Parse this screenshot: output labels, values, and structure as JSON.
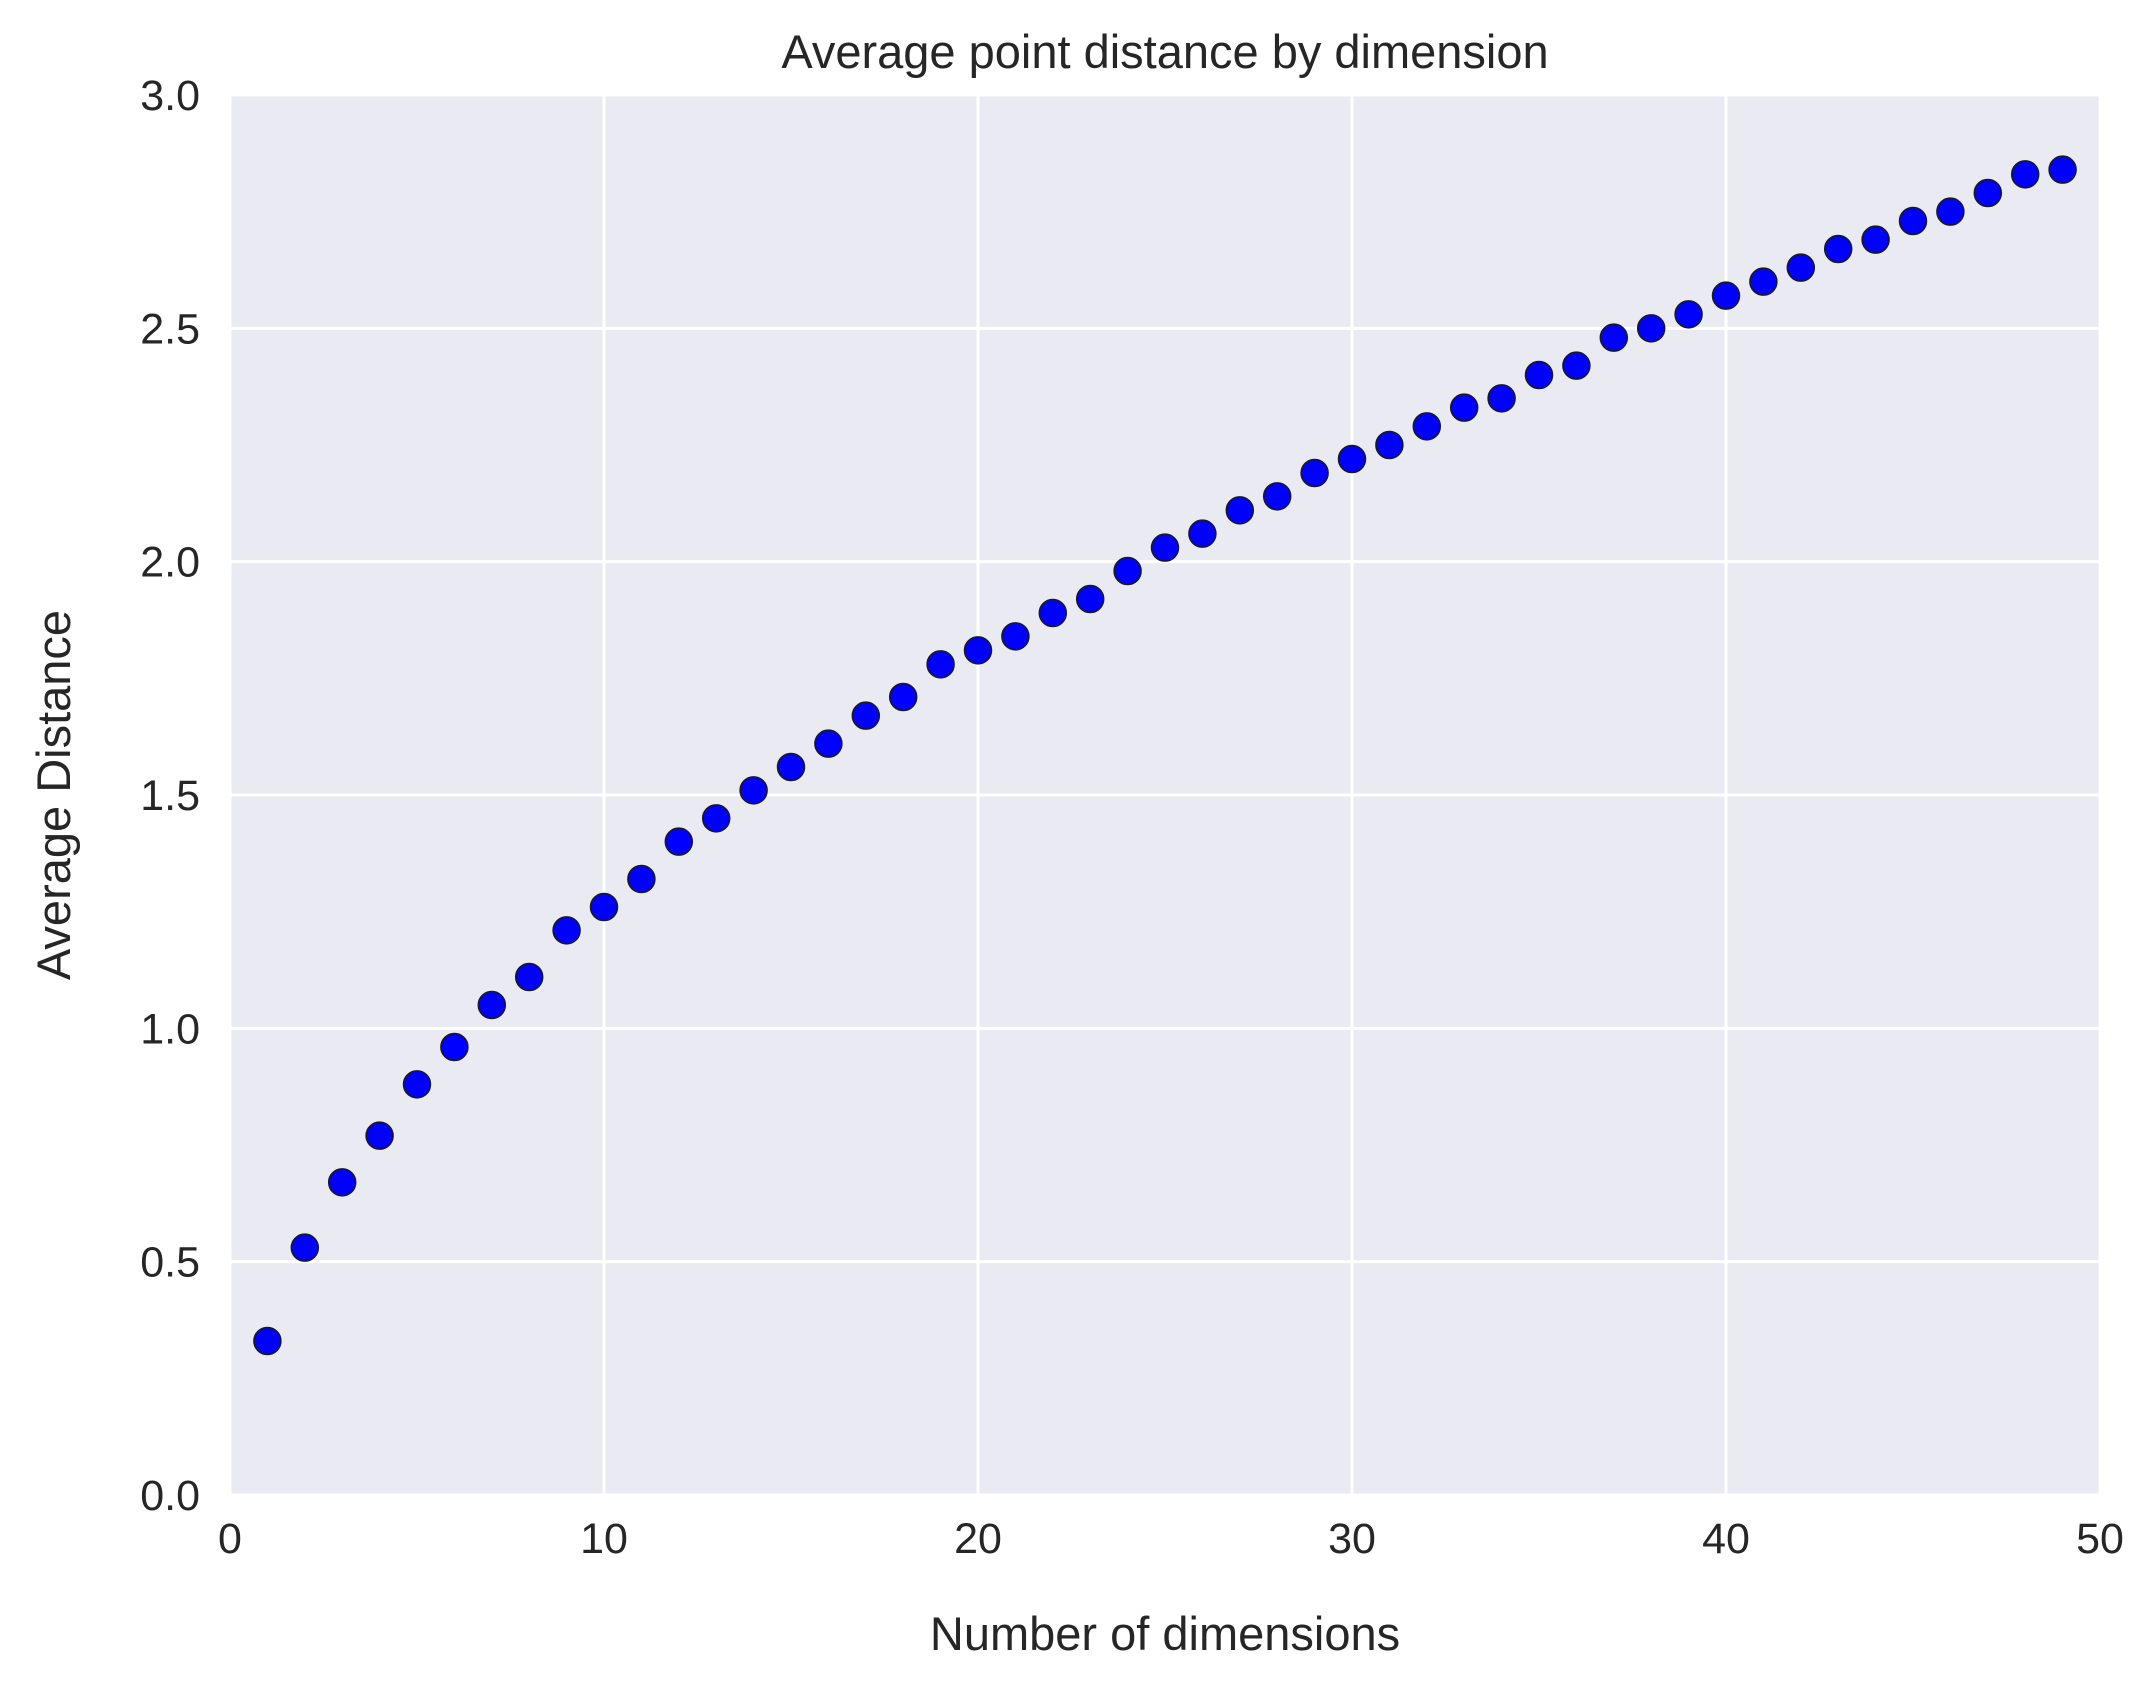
{
  "chart_data": {
    "type": "scatter",
    "title": "Average point distance by dimension",
    "xlabel": "Number of dimensions",
    "ylabel": "Average Distance",
    "xlim": [
      0,
      50
    ],
    "ylim": [
      0,
      3
    ],
    "xticks": [
      0,
      10,
      20,
      30,
      40,
      50
    ],
    "yticks": [
      0.0,
      0.5,
      1.0,
      1.5,
      2.0,
      2.5,
      3.0
    ],
    "xtick_labels": [
      "0",
      "10",
      "20",
      "30",
      "40",
      "50"
    ],
    "ytick_labels": [
      "0.0",
      "0.5",
      "1.0",
      "1.5",
      "2.0",
      "2.5",
      "3.0"
    ],
    "grid": true,
    "colors": {
      "background": "#EAEAF2",
      "grid": "#FFFFFF",
      "marker": "#0000FF",
      "marker_edge": "#1A1A1A"
    },
    "series": [
      {
        "x": [
          1,
          2,
          3,
          4,
          5,
          6,
          7,
          8,
          9,
          10,
          11,
          12,
          13,
          14,
          15,
          16,
          17,
          18,
          19,
          20,
          21,
          22,
          23,
          24,
          25,
          26,
          27,
          28,
          29,
          30,
          31,
          32,
          33,
          34,
          35,
          36,
          37,
          38,
          39,
          40,
          41,
          42,
          43,
          44,
          45,
          46,
          47,
          48,
          49
        ],
        "y": [
          0.33,
          0.53,
          0.67,
          0.77,
          0.88,
          0.96,
          1.05,
          1.11,
          1.21,
          1.26,
          1.32,
          1.4,
          1.45,
          1.51,
          1.56,
          1.61,
          1.67,
          1.71,
          1.78,
          1.81,
          1.84,
          1.89,
          1.92,
          1.98,
          2.03,
          2.06,
          2.11,
          2.14,
          2.19,
          2.22,
          2.25,
          2.29,
          2.33,
          2.35,
          2.4,
          2.42,
          2.48,
          2.5,
          2.53,
          2.57,
          2.6,
          2.63,
          2.67,
          2.69,
          2.73,
          2.75,
          2.79,
          2.83,
          2.84
        ]
      }
    ]
  }
}
